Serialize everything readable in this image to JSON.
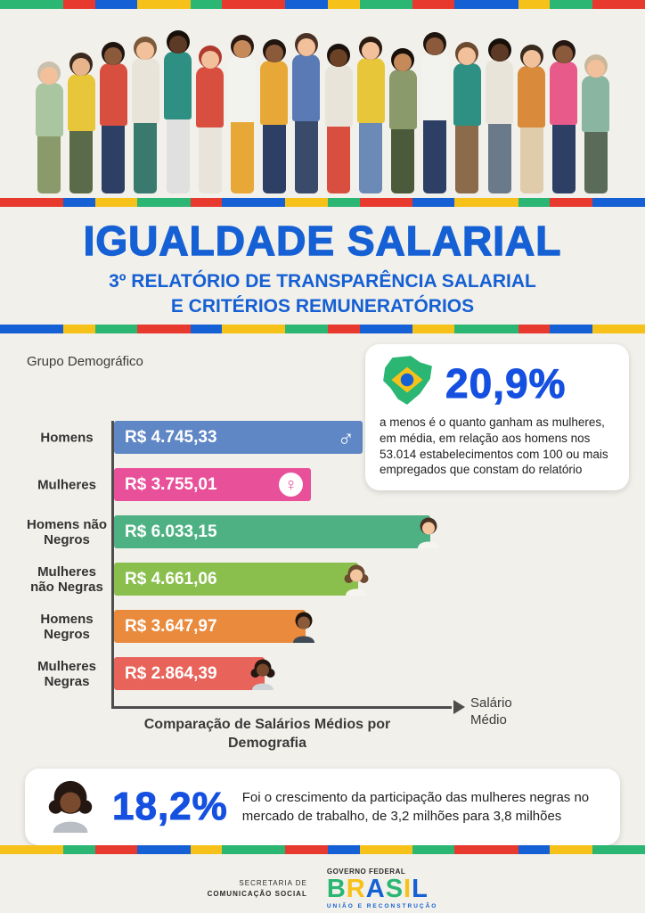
{
  "header": {
    "title": "IGUALDADE SALARIAL",
    "subtitle1": "3º RELATÓRIO DE TRANSPARÊNCIA SALARIAL",
    "subtitle2": "E CRITÉRIOS REMUNERATÓRIOS"
  },
  "chart_data": {
    "type": "bar",
    "orientation": "horizontal",
    "title": "Comparação de Salários Médios por Demografia",
    "axis_label_y": "Grupo Demográfico",
    "axis_label_x": "Salário Médio",
    "xlim": [
      0,
      6033.15
    ],
    "categories": [
      "Homens",
      "Mulheres",
      "Homens não Negros",
      "Mulheres não Negras",
      "Homens Negros",
      "Mulheres Negras"
    ],
    "values": [
      4745.33,
      3755.01,
      6033.15,
      4661.06,
      3647.97,
      2864.39
    ],
    "value_labels": [
      "R$ 4.745,33",
      "R$ 3.755,01",
      "R$ 6.033,15",
      "R$ 4.661,06",
      "R$ 3.647,97",
      "R$ 2.864,39"
    ],
    "bar_colors": [
      "#5f86c5",
      "#e9509a",
      "#4eb183",
      "#8abf4e",
      "#e98a3c",
      "#e8635a"
    ],
    "icons": [
      {
        "name": "male-symbol-icon",
        "style": "glyph",
        "glyph": "♂"
      },
      {
        "name": "female-symbol-icon",
        "style": "glyph-circle",
        "glyph": "♀"
      },
      {
        "name": "white-man-icon",
        "style": "person",
        "female": false,
        "skin": "#f3c6a0",
        "hair": "#4a3324",
        "shirt": "#f6f4ee"
      },
      {
        "name": "white-woman-icon",
        "style": "person",
        "female": true,
        "skin": "#f3c6a0",
        "hair": "#6b4a2f",
        "shirt": "#f6f4ee"
      },
      {
        "name": "black-man-icon",
        "style": "person",
        "female": false,
        "skin": "#8a5a3b",
        "hair": "#20150e",
        "shirt": "#3f4a56"
      },
      {
        "name": "black-woman-icon",
        "style": "person",
        "female": true,
        "skin": "#7a4a2e",
        "hair": "#241711",
        "shirt": "#cfd4d8"
      }
    ]
  },
  "callout_top": {
    "icon": "brazil-map-icon",
    "stat": "20,9%",
    "text": "a menos é o quanto ganham as mulheres, em média, em relação aos homens nos 53.014 estabelecimentos com 100 ou mais empregados que constam do relatório"
  },
  "callout_bottom": {
    "icon": "black-woman-icon",
    "stat": "18,2%",
    "text": "Foi o crescimento da participação das mulheres negras no mercado de trabalho, de 3,2 milhões para 3,8 milhões"
  },
  "footer": {
    "secom_line1": "SECRETARIA DE",
    "secom_line2": "COMUNICAÇÃO SOCIAL",
    "gov_top": "GOVERNO FEDERAL",
    "gov_logo": "BRASIL",
    "gov_bottom": "UNIÃO E RECONSTRUÇÃO",
    "brasil_letter_colors": [
      "#2bb673",
      "#f6c21a",
      "#1560d4",
      "#2bb673",
      "#f6c21a",
      "#1560d4"
    ]
  },
  "colors": {
    "accent_blue": "#1560d4",
    "stat_blue": "#1550e0",
    "axis": "#4d4d4d",
    "background": "#f2f0ea",
    "stripe_colors": [
      "#2bb673",
      "#e8392f",
      "#1560d4",
      "#f6c21a"
    ]
  },
  "hero_people": [
    {
      "skin": "#f2c09b",
      "hair": "#c9c0ae",
      "top": "#a9c6a0",
      "bottom": "#8a9a6b",
      "ht": 150
    },
    {
      "skin": "#e8b48c",
      "hair": "#3a2a1e",
      "top": "#e8c63a",
      "bottom": "#5a6b4a",
      "ht": 160
    },
    {
      "skin": "#8a5a3b",
      "hair": "#1e1410",
      "top": "#d94f3f",
      "bottom": "#2e3f66",
      "ht": 172
    },
    {
      "skin": "#f2c09b",
      "hair": "#7a5a3a",
      "top": "#e8e4da",
      "bottom": "#3a7a6e",
      "ht": 178
    },
    {
      "skin": "#5c3a26",
      "hair": "#161009",
      "top": "#2e8f83",
      "bottom": "#e0e0e0",
      "ht": 185
    },
    {
      "skin": "#f2c09b",
      "hair": "#b03a2e",
      "top": "#d94f3f",
      "bottom": "#e8e4da",
      "ht": 168
    },
    {
      "skin": "#c68a5a",
      "hair": "#2a1a12",
      "top": "#f2f2ee",
      "bottom": "#e8a838",
      "ht": 180
    },
    {
      "skin": "#8a5a3b",
      "hair": "#20150e",
      "top": "#e8a838",
      "bottom": "#2e3f66",
      "ht": 175
    },
    {
      "skin": "#f2c09b",
      "hair": "#4a3324",
      "top": "#5a7ab5",
      "bottom": "#3a4a6b",
      "ht": 182
    },
    {
      "skin": "#6b4226",
      "hair": "#1a120c",
      "top": "#e8e4da",
      "bottom": "#d94f3f",
      "ht": 170
    },
    {
      "skin": "#f2c09b",
      "hair": "#2a1a12",
      "top": "#e8c63a",
      "bottom": "#6b8ab5",
      "ht": 178
    },
    {
      "skin": "#c68a5a",
      "hair": "#161009",
      "top": "#8a9a6b",
      "bottom": "#4a5a3a",
      "ht": 165
    },
    {
      "skin": "#8a5a3b",
      "hair": "#20150e",
      "top": "#f2f2ee",
      "bottom": "#2e3f66",
      "ht": 183
    },
    {
      "skin": "#f2c09b",
      "hair": "#6b4a2f",
      "top": "#2e8f83",
      "bottom": "#8a6b4a",
      "ht": 172
    },
    {
      "skin": "#5c3a26",
      "hair": "#161009",
      "top": "#e8e4da",
      "bottom": "#6b7a8a",
      "ht": 176
    },
    {
      "skin": "#f2c09b",
      "hair": "#3a2a1e",
      "top": "#d98a3a",
      "bottom": "#e0ccaa",
      "ht": 169
    },
    {
      "skin": "#8a5a3b",
      "hair": "#241711",
      "top": "#e85a8a",
      "bottom": "#2e3f66",
      "ht": 174
    },
    {
      "skin": "#f2c09b",
      "hair": "#c9b89a",
      "top": "#8ab5a0",
      "bottom": "#5a6b5a",
      "ht": 158
    }
  ]
}
